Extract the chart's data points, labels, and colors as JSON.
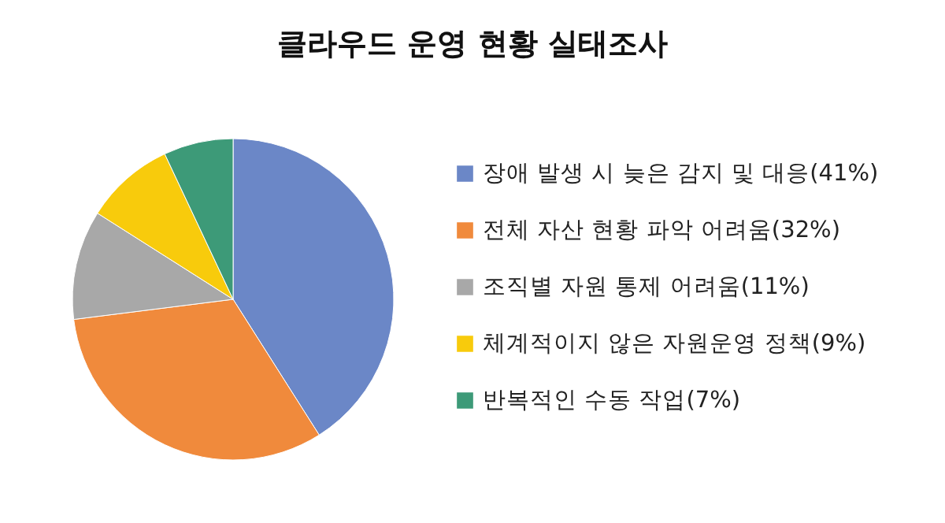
{
  "chart_data": {
    "type": "pie",
    "title": "클라우드 운영 현황 실태조사",
    "categories": [
      "장애 발생 시 늦은 감지 및 대응(41%)",
      "전체 자산 현황 파악 어려움(32%)",
      "조직별 자원 통제 어려움(11%)",
      "체계적이지 않은 자원운영 정책(9%)",
      "반복적인 수동 작업(7%)"
    ],
    "values": [
      41,
      32,
      11,
      9,
      7
    ],
    "colors": [
      "#6b87c7",
      "#f08a3c",
      "#a8a8a8",
      "#f8cb0c",
      "#3d9a78"
    ],
    "legend": "right"
  }
}
